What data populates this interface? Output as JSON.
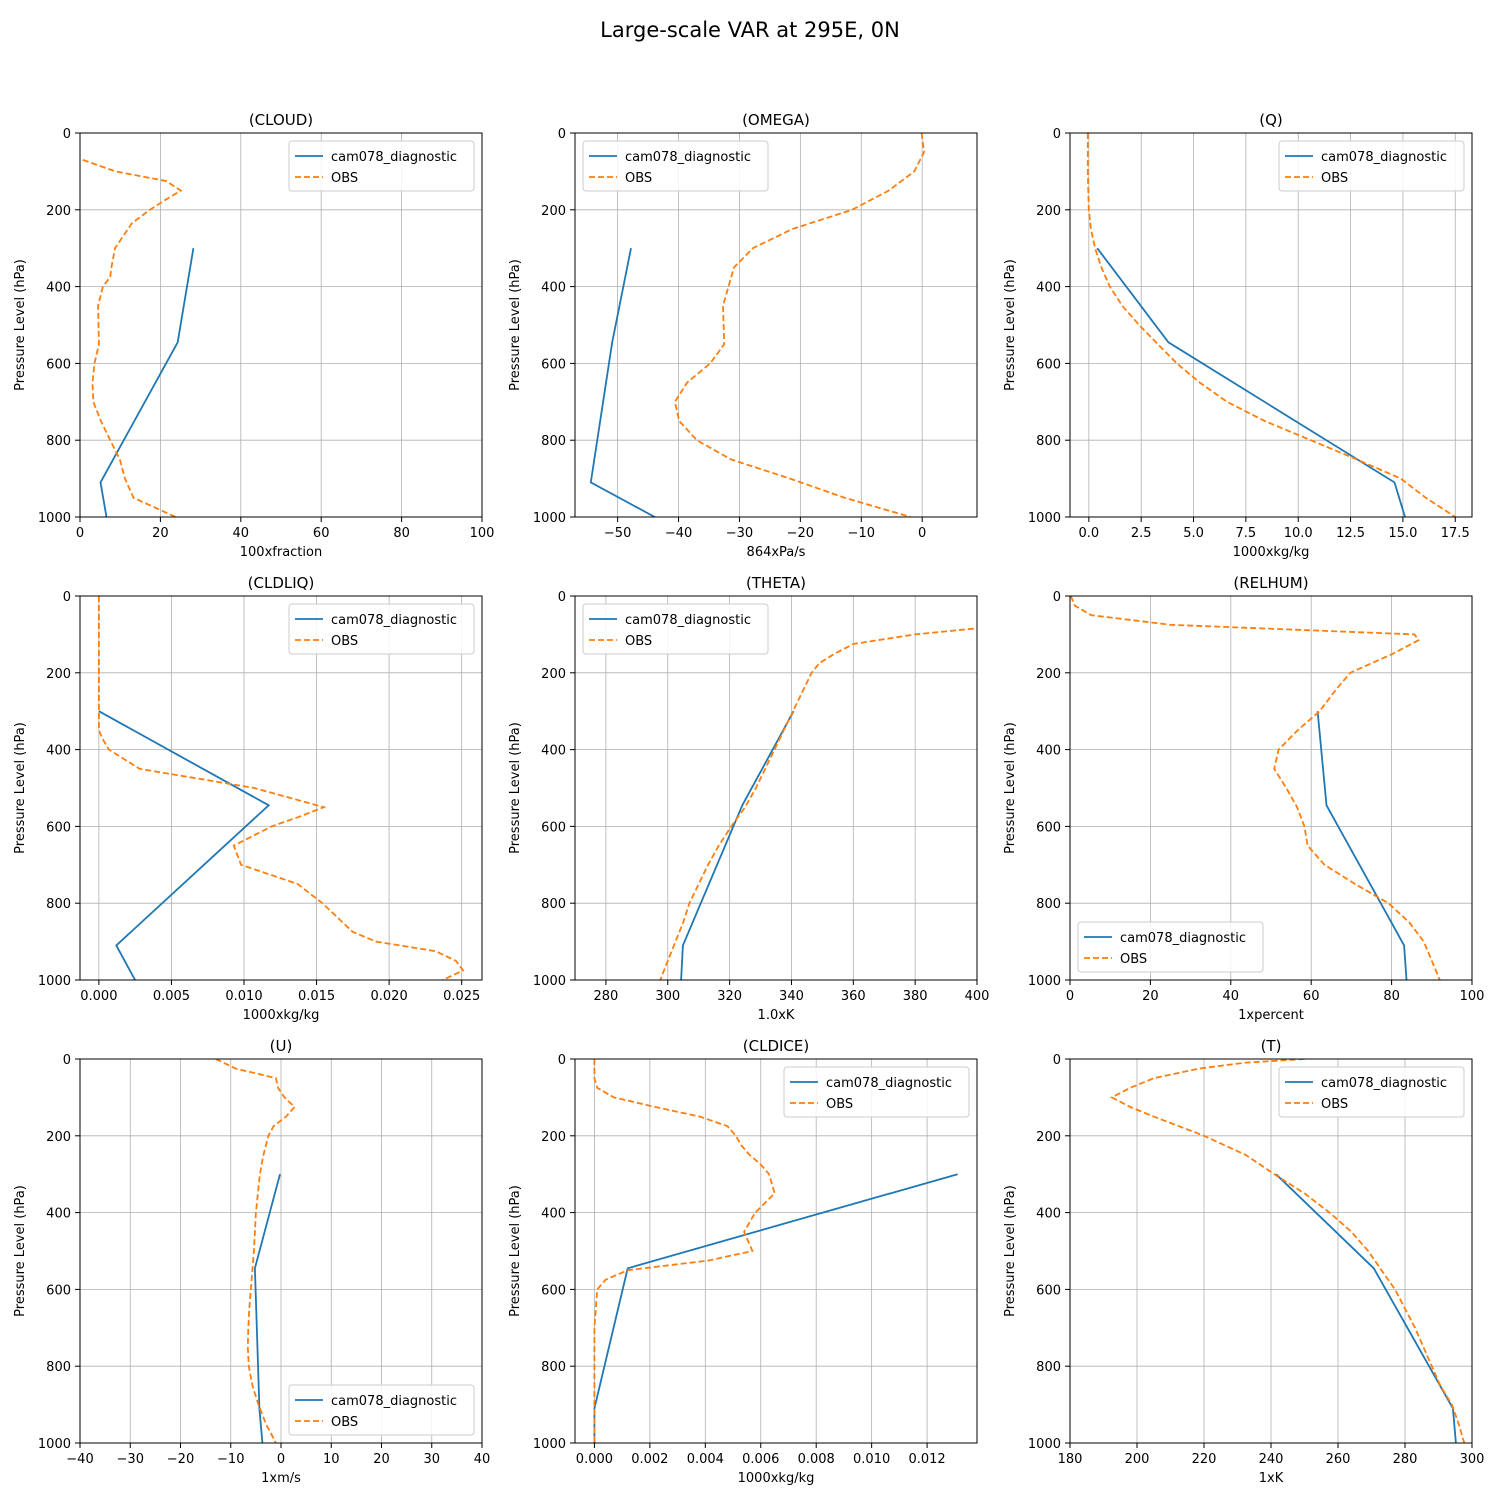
{
  "figure": {
    "title": "Large-scale VAR at 295E, 0N"
  },
  "colors": {
    "model": "#1f77b4",
    "obs": "#ff7f0e",
    "grid": "#b0b0b0"
  },
  "chart_data": [
    {
      "type": "line",
      "title": "(CLOUD)",
      "xlabel": "100xfraction",
      "ylabel": "Pressure Level (hPa)",
      "xlim": [
        0,
        100
      ],
      "ylim": [
        1000,
        0
      ],
      "xticks": [
        0,
        20,
        40,
        60,
        80,
        100
      ],
      "xtick_labels": [
        "0",
        "20",
        "40",
        "60",
        "80",
        "100"
      ],
      "yticks": [
        0,
        200,
        400,
        600,
        800,
        1000
      ],
      "ytick_labels": [
        "0",
        "200",
        "400",
        "600",
        "800",
        "1000"
      ],
      "grid": true,
      "legend": "upper right",
      "series": [
        {
          "name": "cam078_diagnostic",
          "style": "solid",
          "y": [
            300,
            545,
            910,
            1000
          ],
          "x": [
            28.2,
            24.3,
            5.1,
            6.6
          ]
        },
        {
          "name": "OBS",
          "style": "dashed",
          "y": [
            70,
            100,
            125,
            150,
            175,
            200,
            235,
            300,
            350,
            375,
            400,
            450,
            500,
            550,
            600,
            650,
            700,
            750,
            800,
            850,
            900,
            950,
            1000
          ],
          "x": [
            0.7,
            8.8,
            21.4,
            25.1,
            21.1,
            17.4,
            12.9,
            8.7,
            7.8,
            7.5,
            5.7,
            4.5,
            4.6,
            4.7,
            3.6,
            3.1,
            3.3,
            5.2,
            7.5,
            9.9,
            11.2,
            13.3,
            23.8
          ]
        }
      ]
    },
    {
      "type": "line",
      "title": "(OMEGA)",
      "xlabel": "864xPa/s",
      "ylabel": "Pressure Level (hPa)",
      "xlim": [
        -57,
        9
      ],
      "ylim": [
        1000,
        0
      ],
      "xticks": [
        -50,
        -40,
        -30,
        -20,
        -10,
        0
      ],
      "xtick_labels": [
        "−50",
        "−40",
        "−30",
        "−20",
        "−10",
        "0"
      ],
      "yticks": [
        0,
        200,
        400,
        600,
        800,
        1000
      ],
      "ytick_labels": [
        "0",
        "200",
        "400",
        "600",
        "800",
        "1000"
      ],
      "grid": true,
      "legend": "upper left",
      "series": [
        {
          "name": "cam078_diagnostic",
          "style": "solid",
          "y": [
            300,
            545,
            910,
            1000
          ],
          "x": [
            -47.8,
            -50.9,
            -54.4,
            -43.9
          ]
        },
        {
          "name": "OBS",
          "style": "dashed",
          "y": [
            0,
            50,
            100,
            150,
            200,
            250,
            300,
            350,
            400,
            450,
            500,
            550,
            600,
            650,
            700,
            750,
            800,
            850,
            900,
            950,
            1000
          ],
          "x": [
            -0.1,
            0.3,
            -1.3,
            -5.5,
            -11.5,
            -21.3,
            -27.8,
            -30.9,
            -31.8,
            -32.7,
            -32.6,
            -32.5,
            -34.8,
            -38.6,
            -40.6,
            -39.9,
            -37.0,
            -31.4,
            -21.7,
            -12.7,
            -1.9
          ]
        }
      ]
    },
    {
      "type": "line",
      "title": "(Q)",
      "xlabel": "1000xkg/kg",
      "ylabel": "Pressure Level (hPa)",
      "xlim": [
        -0.9,
        18.3
      ],
      "ylim": [
        1000,
        0
      ],
      "xticks": [
        0,
        2.5,
        5,
        7.5,
        10,
        12.5,
        15,
        17.5
      ],
      "xtick_labels": [
        "0.0",
        "2.5",
        "5.0",
        "7.5",
        "10.0",
        "12.5",
        "15.0",
        "17.5"
      ],
      "yticks": [
        0,
        200,
        400,
        600,
        800,
        1000
      ],
      "ytick_labels": [
        "0",
        "200",
        "400",
        "600",
        "800",
        "1000"
      ],
      "grid": true,
      "legend": "upper right",
      "series": [
        {
          "name": "cam078_diagnostic",
          "style": "solid",
          "y": [
            300,
            545,
            910,
            1000
          ],
          "x": [
            0.4,
            3.8,
            14.6,
            15.1
          ]
        },
        {
          "name": "OBS",
          "style": "dashed",
          "y": [
            0,
            100,
            200,
            250,
            300,
            350,
            400,
            450,
            500,
            550,
            600,
            650,
            700,
            750,
            800,
            850,
            900,
            950,
            1000
          ],
          "x": [
            -0.05,
            -0.05,
            0.0,
            0.1,
            0.3,
            0.6,
            1.0,
            1.6,
            2.4,
            3.3,
            4.2,
            5.3,
            6.6,
            8.4,
            10.6,
            12.8,
            14.9,
            16.1,
            17.5
          ]
        }
      ]
    },
    {
      "type": "line",
      "title": "(CLDLIQ)",
      "xlabel": "1000xkg/kg",
      "ylabel": "Pressure Level (hPa)",
      "xlim": [
        -0.0013,
        0.0264
      ],
      "ylim": [
        1000,
        0
      ],
      "xticks": [
        0,
        0.005,
        0.01,
        0.015,
        0.02,
        0.025
      ],
      "xtick_labels": [
        "0.000",
        "0.005",
        "0.010",
        "0.015",
        "0.020",
        "0.025"
      ],
      "yticks": [
        0,
        200,
        400,
        600,
        800,
        1000
      ],
      "ytick_labels": [
        "0",
        "200",
        "400",
        "600",
        "800",
        "1000"
      ],
      "grid": true,
      "legend": "upper right",
      "series": [
        {
          "name": "cam078_diagnostic",
          "style": "solid",
          "y": [
            300,
            545,
            910,
            1000
          ],
          "x": [
            0.0,
            0.0117,
            0.0012,
            0.0025
          ]
        },
        {
          "name": "OBS",
          "style": "dashed",
          "y": [
            0,
            100,
            200,
            300,
            350,
            375,
            400,
            450,
            500,
            550,
            575,
            600,
            650,
            700,
            750,
            800,
            850,
            875,
            900,
            925,
            950,
            975,
            1000
          ],
          "x": [
            0.0,
            0.0,
            0.0,
            0.0,
            0.0,
            0.0003,
            0.0007,
            0.0028,
            0.0107,
            0.0155,
            0.0138,
            0.0119,
            0.0093,
            0.0098,
            0.0137,
            0.0154,
            0.0168,
            0.0175,
            0.0191,
            0.0232,
            0.0246,
            0.0251,
            0.0237
          ]
        }
      ]
    },
    {
      "type": "line",
      "title": "(THETA)",
      "xlabel": "1.0xK",
      "ylabel": "Pressure Level (hPa)",
      "xlim": [
        270,
        400
      ],
      "ylim": [
        1000,
        0
      ],
      "xticks": [
        280,
        300,
        320,
        340,
        360,
        380,
        400
      ],
      "xtick_labels": [
        "280",
        "300",
        "320",
        "340",
        "360",
        "380",
        "400"
      ],
      "yticks": [
        0,
        200,
        400,
        600,
        800,
        1000
      ],
      "ytick_labels": [
        "0",
        "200",
        "400",
        "600",
        "800",
        "1000"
      ],
      "grid": true,
      "legend": "upper left",
      "series": [
        {
          "name": "cam078_diagnostic",
          "style": "solid",
          "y": [
            300,
            545,
            910,
            1000
          ],
          "x": [
            340.7,
            324.1,
            304.9,
            304.3
          ]
        },
        {
          "name": "OBS",
          "style": "dashed",
          "y": [
            85,
            100,
            125,
            150,
            175,
            200,
            250,
            300,
            350,
            400,
            450,
            500,
            550,
            600,
            650,
            700,
            750,
            800,
            850,
            900,
            950,
            1000
          ],
          "x": [
            399.0,
            380.0,
            360.0,
            354.0,
            349.0,
            346.5,
            343.5,
            340.5,
            337.5,
            334.5,
            331.5,
            328.5,
            325.0,
            320.5,
            316.5,
            313.0,
            310.0,
            307.0,
            305.0,
            302.5,
            300.0,
            297.6
          ]
        }
      ]
    },
    {
      "type": "line",
      "title": "(RELHUM)",
      "xlabel": "1xpercent",
      "ylabel": "Pressure Level (hPa)",
      "xlim": [
        0,
        100
      ],
      "ylim": [
        1000,
        0
      ],
      "xticks": [
        0,
        20,
        40,
        60,
        80,
        100
      ],
      "xtick_labels": [
        "0",
        "20",
        "40",
        "60",
        "80",
        "100"
      ],
      "yticks": [
        0,
        200,
        400,
        600,
        800,
        1000
      ],
      "ytick_labels": [
        "0",
        "200",
        "400",
        "600",
        "800",
        "1000"
      ],
      "grid": true,
      "legend": "lower left",
      "series": [
        {
          "name": "cam078_diagnostic",
          "style": "solid",
          "y": [
            300,
            545,
            910,
            1000
          ],
          "x": [
            61.6,
            63.8,
            83.1,
            83.7
          ]
        },
        {
          "name": "OBS",
          "style": "dashed",
          "y": [
            0,
            25,
            50,
            75,
            100,
            115,
            150,
            200,
            250,
            300,
            350,
            400,
            450,
            500,
            550,
            600,
            650,
            700,
            750,
            800,
            850,
            900,
            950,
            1000
          ],
          "x": [
            0.2,
            1.2,
            5.3,
            25.0,
            85.7,
            86.7,
            80.4,
            69.7,
            65.7,
            62.1,
            56.6,
            51.9,
            50.8,
            53.8,
            56.5,
            58.3,
            59.1,
            63.3,
            70.9,
            79.2,
            84.4,
            88.0,
            90.0,
            92.0
          ]
        }
      ]
    },
    {
      "type": "line",
      "title": "(U)",
      "xlabel": "1xm/s",
      "ylabel": "Pressure Level (hPa)",
      "xlim": [
        -40,
        40
      ],
      "ylim": [
        1000,
        0
      ],
      "xticks": [
        -40,
        -30,
        -20,
        -10,
        0,
        10,
        20,
        30,
        40
      ],
      "xtick_labels": [
        "−40",
        "−30",
        "−20",
        "−10",
        "0",
        "10",
        "20",
        "30",
        "40"
      ],
      "yticks": [
        0,
        200,
        400,
        600,
        800,
        1000
      ],
      "ytick_labels": [
        "0",
        "200",
        "400",
        "600",
        "800",
        "1000"
      ],
      "grid": true,
      "legend": "lower right",
      "series": [
        {
          "name": "cam078_diagnostic",
          "style": "solid",
          "y": [
            300,
            545,
            910,
            1000
          ],
          "x": [
            -0.2,
            -5.2,
            -4.3,
            -3.7
          ]
        },
        {
          "name": "OBS",
          "style": "dashed",
          "y": [
            0,
            25,
            50,
            75,
            100,
            125,
            150,
            175,
            200,
            250,
            300,
            350,
            400,
            450,
            500,
            550,
            600,
            650,
            700,
            750,
            800,
            850,
            900,
            950,
            1000
          ],
          "x": [
            -13.0,
            -9.0,
            -1.0,
            -0.6,
            0.7,
            2.7,
            1.0,
            -1.5,
            -2.5,
            -3.5,
            -4.2,
            -4.6,
            -5.0,
            -5.2,
            -5.4,
            -5.7,
            -6.0,
            -6.3,
            -6.5,
            -6.6,
            -6.4,
            -5.7,
            -4.5,
            -3.0,
            -1.0
          ]
        }
      ]
    },
    {
      "type": "line",
      "title": "(CLDICE)",
      "xlabel": "1000xkg/kg",
      "ylabel": "Pressure Level (hPa)",
      "xlim": [
        -0.0007,
        0.0138
      ],
      "ylim": [
        1000,
        0
      ],
      "xticks": [
        0,
        0.002,
        0.004,
        0.006,
        0.008,
        0.01,
        0.012
      ],
      "xtick_labels": [
        "0.000",
        "0.002",
        "0.004",
        "0.006",
        "0.008",
        "0.010",
        "0.012"
      ],
      "yticks": [
        0,
        200,
        400,
        600,
        800,
        1000
      ],
      "ytick_labels": [
        "0",
        "200",
        "400",
        "600",
        "800",
        "1000"
      ],
      "grid": true,
      "legend": "upper right",
      "series": [
        {
          "name": "cam078_diagnostic",
          "style": "solid",
          "y": [
            300,
            545,
            910,
            1000
          ],
          "x": [
            0.0131,
            0.0012,
            0.0,
            0.0
          ]
        },
        {
          "name": "OBS",
          "style": "dashed",
          "y": [
            0,
            50,
            75,
            100,
            125,
            150,
            175,
            200,
            225,
            250,
            275,
            300,
            350,
            400,
            450,
            500,
            525,
            550,
            575,
            600,
            700,
            800,
            900,
            1000
          ],
          "x": [
            0.0,
            0.0,
            0.0001,
            0.0007,
            0.0022,
            0.0038,
            0.0048,
            0.0051,
            0.0053,
            0.0056,
            0.006,
            0.0063,
            0.0065,
            0.0058,
            0.0054,
            0.0057,
            0.0041,
            0.0012,
            0.0004,
            0.0001,
            0.0,
            0.0,
            0.0,
            0.0
          ]
        }
      ]
    },
    {
      "type": "line",
      "title": "(T)",
      "xlabel": "1xK",
      "ylabel": "Pressure Level (hPa)",
      "xlim": [
        180,
        300
      ],
      "ylim": [
        1000,
        0
      ],
      "xticks": [
        180,
        200,
        220,
        240,
        260,
        280,
        300
      ],
      "xtick_labels": [
        "180",
        "200",
        "220",
        "240",
        "260",
        "280",
        "300"
      ],
      "yticks": [
        0,
        200,
        400,
        600,
        800,
        1000
      ],
      "ytick_labels": [
        "0",
        "200",
        "400",
        "600",
        "800",
        "1000"
      ],
      "grid": true,
      "legend": "upper right",
      "series": [
        {
          "name": "cam078_diagnostic",
          "style": "solid",
          "y": [
            300,
            545,
            910,
            1000
          ],
          "x": [
            241.5,
            270.7,
            294.3,
            295.2
          ]
        },
        {
          "name": "OBS",
          "style": "dashed",
          "y": [
            0,
            10,
            25,
            50,
            75,
            100,
            125,
            150,
            200,
            250,
            300,
            350,
            400,
            450,
            500,
            550,
            600,
            650,
            700,
            750,
            800,
            850,
            900,
            950,
            1000
          ],
          "x": [
            250.0,
            232.0,
            218.5,
            205.0,
            198.0,
            192.5,
            198.0,
            205.0,
            220.0,
            232.5,
            241.0,
            250.0,
            257.5,
            264.0,
            269.0,
            273.0,
            277.0,
            280.0,
            283.0,
            285.5,
            288.0,
            290.5,
            294.0,
            296.0,
            297.7
          ]
        }
      ]
    }
  ]
}
